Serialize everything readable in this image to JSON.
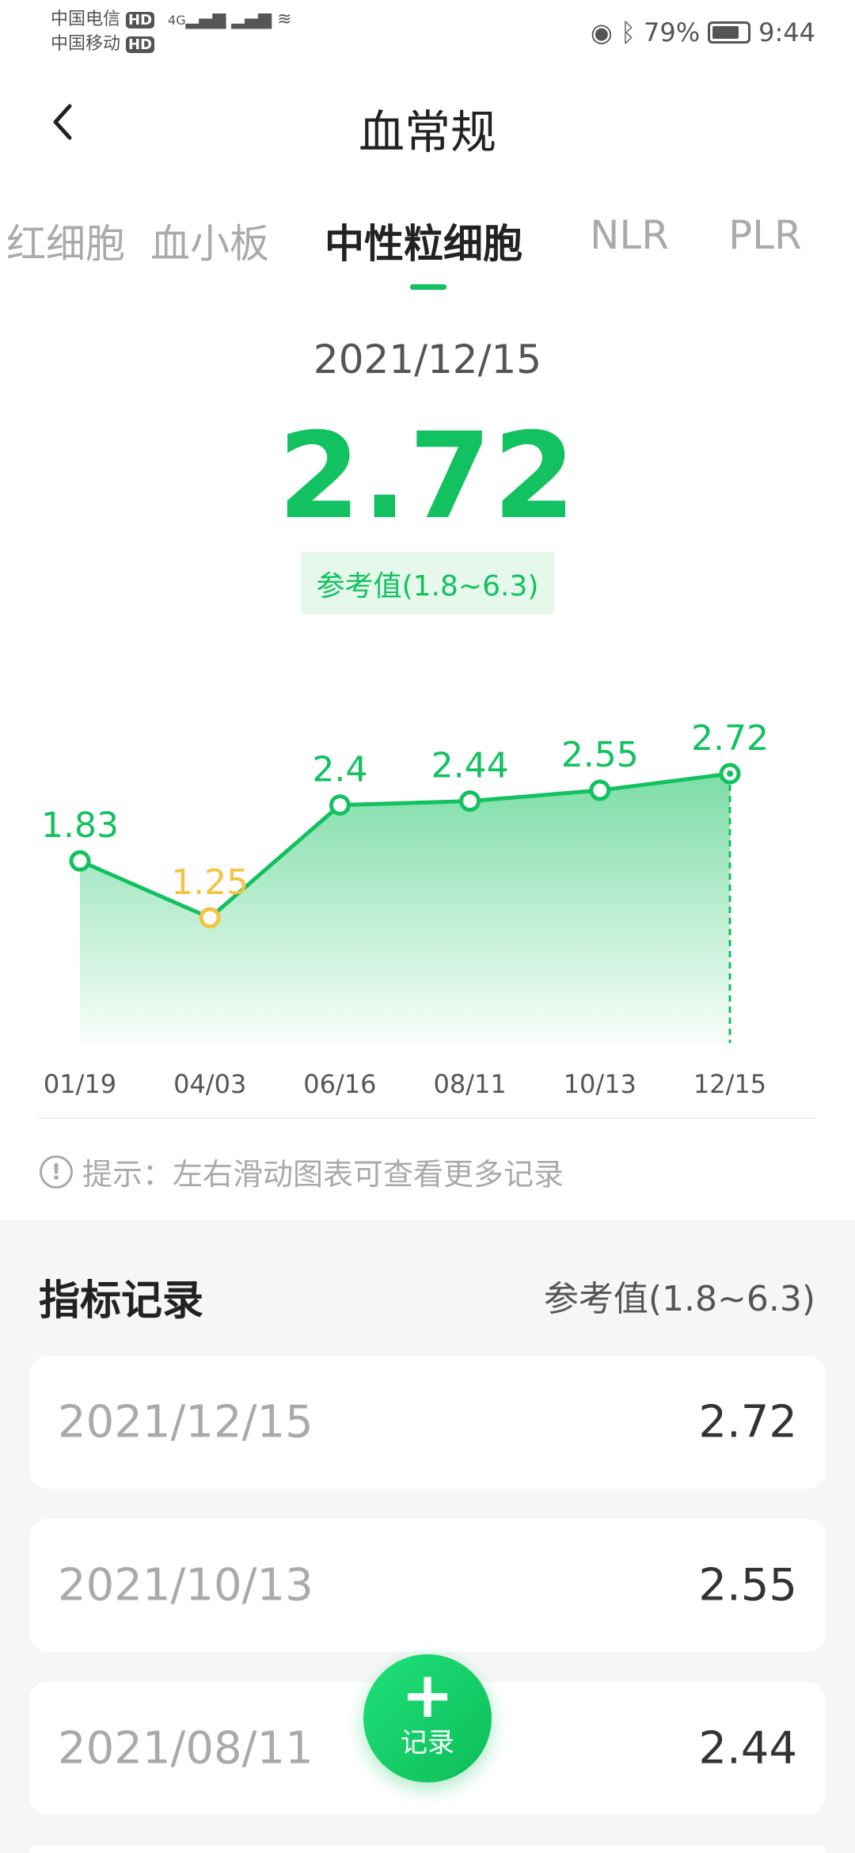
{
  "status_bar": {
    "carrier1": "中国电信",
    "carrier2": "中国移动",
    "hd": "HD",
    "network": "4G",
    "battery": "79%",
    "battery_level": 0.79,
    "time": "9:44"
  },
  "header": {
    "title": "血常规"
  },
  "tabs": [
    {
      "label": "红细胞"
    },
    {
      "label": "血小板"
    },
    {
      "label": "中性粒细胞",
      "active": true
    },
    {
      "label": "NLR"
    },
    {
      "label": "PLR"
    }
  ],
  "summary": {
    "date": "2021/12/15",
    "value": "2.72",
    "reference": "参考值(1.8~6.3)"
  },
  "chart_data": {
    "type": "area",
    "categories": [
      "01/19",
      "04/03",
      "06/16",
      "08/11",
      "10/13",
      "12/15"
    ],
    "values": [
      1.83,
      1.25,
      2.4,
      2.44,
      2.55,
      2.72
    ],
    "value_labels": [
      "1.83",
      "1.25",
      "2.4",
      "2.44",
      "2.55",
      "2.72"
    ],
    "reference_range": [
      1.8,
      6.3
    ],
    "selected": "12/15",
    "colors": {
      "normal": "#12c15f",
      "abnormal": "#f5c242"
    }
  },
  "tip": "提示：左右滑动图表可查看更多记录",
  "records": {
    "title": "指标记录",
    "reference": "参考值(1.8~6.3)",
    "items": [
      {
        "date": "2021/12/15",
        "value": "2.72"
      },
      {
        "date": "2021/10/13",
        "value": "2.55"
      },
      {
        "date": "2021/08/11",
        "value": "2.44"
      }
    ]
  },
  "fab": {
    "label": "记录"
  }
}
